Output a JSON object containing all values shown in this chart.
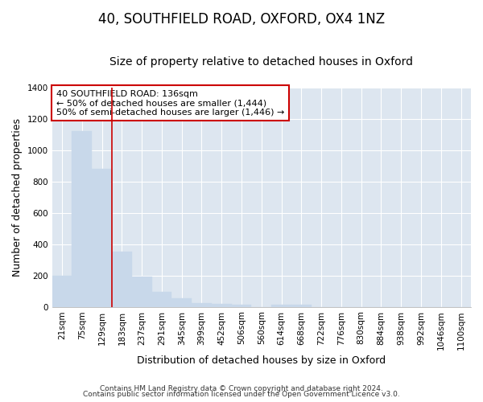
{
  "title1": "40, SOUTHFIELD ROAD, OXFORD, OX4 1NZ",
  "title2": "Size of property relative to detached houses in Oxford",
  "xlabel": "Distribution of detached houses by size in Oxford",
  "ylabel": "Number of detached properties",
  "bar_color": "#c8d8ea",
  "bar_edge_color": "#c8d8ea",
  "plot_bg_color": "#dde6f0",
  "fig_bg_color": "#ffffff",
  "grid_color": "#ffffff",
  "categories": [
    "21sqm",
    "75sqm",
    "129sqm",
    "183sqm",
    "237sqm",
    "291sqm",
    "345sqm",
    "399sqm",
    "452sqm",
    "506sqm",
    "560sqm",
    "614sqm",
    "668sqm",
    "722sqm",
    "776sqm",
    "830sqm",
    "884sqm",
    "938sqm",
    "992sqm",
    "1046sqm",
    "1100sqm"
  ],
  "values": [
    197,
    1120,
    880,
    352,
    193,
    97,
    54,
    22,
    18,
    15,
    0,
    13,
    13,
    0,
    0,
    0,
    0,
    0,
    0,
    0,
    0
  ],
  "red_line_x": 2.5,
  "annotation_text": "40 SOUTHFIELD ROAD: 136sqm\n← 50% of detached houses are smaller (1,444)\n50% of semi-detached houses are larger (1,446) →",
  "annotation_box_color": "#ffffff",
  "annotation_border_color": "#cc0000",
  "ylim": [
    0,
    1400
  ],
  "yticks": [
    0,
    200,
    400,
    600,
    800,
    1000,
    1200,
    1400
  ],
  "footer1": "Contains HM Land Registry data © Crown copyright and database right 2024.",
  "footer2": "Contains public sector information licensed under the Open Government Licence v3.0.",
  "title1_fontsize": 12,
  "title2_fontsize": 10,
  "tick_fontsize": 7.5,
  "ylabel_fontsize": 9,
  "xlabel_fontsize": 9,
  "annotation_fontsize": 8,
  "footer_fontsize": 6.5
}
